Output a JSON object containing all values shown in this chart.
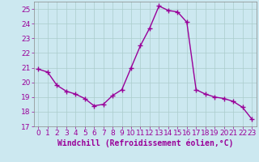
{
  "x": [
    0,
    1,
    2,
    3,
    4,
    5,
    6,
    7,
    8,
    9,
    10,
    11,
    12,
    13,
    14,
    15,
    16,
    17,
    18,
    19,
    20,
    21,
    22,
    23
  ],
  "y": [
    20.9,
    20.7,
    19.8,
    19.4,
    19.2,
    18.9,
    18.4,
    18.5,
    19.1,
    19.5,
    21.0,
    22.5,
    23.7,
    25.2,
    24.9,
    24.8,
    24.1,
    19.5,
    19.2,
    19.0,
    18.9,
    18.7,
    18.3,
    17.5
  ],
  "line_color": "#990099",
  "marker": "+",
  "marker_size": 4,
  "bg_color": "#cce8f0",
  "grid_color": "#aacccc",
  "xlabel": "Windchill (Refroidissement éolien,°C)",
  "xlabel_color": "#990099",
  "tick_color": "#990099",
  "ylim": [
    17,
    25.5
  ],
  "xlim": [
    -0.5,
    23.5
  ],
  "yticks": [
    17,
    18,
    19,
    20,
    21,
    22,
    23,
    24,
    25
  ],
  "xticks": [
    0,
    1,
    2,
    3,
    4,
    5,
    6,
    7,
    8,
    9,
    10,
    11,
    12,
    13,
    14,
    15,
    16,
    17,
    18,
    19,
    20,
    21,
    22,
    23
  ],
  "tick_fontsize": 6.5,
  "xlabel_fontsize": 7,
  "line_width": 1.0,
  "marker_edge_width": 1.0
}
